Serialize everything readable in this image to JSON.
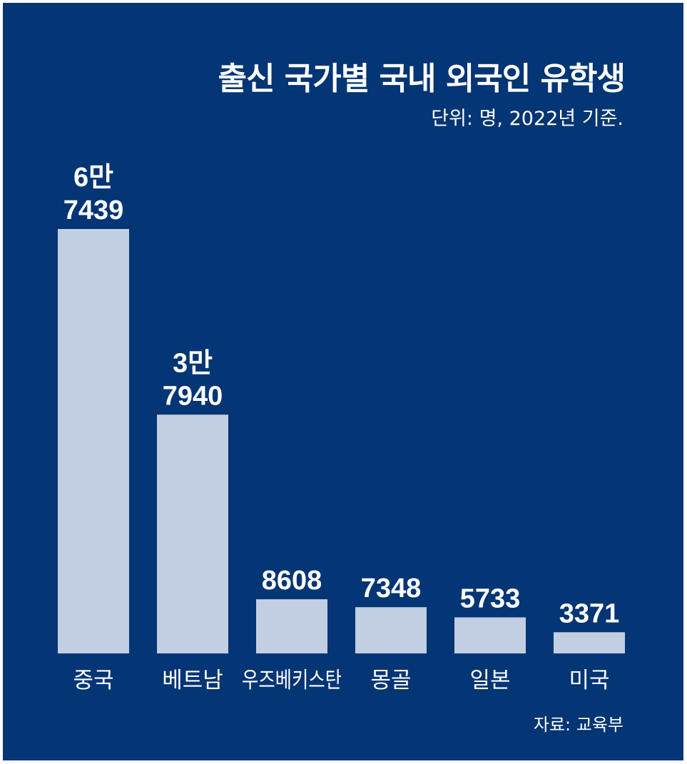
{
  "colors": {
    "background": "#043574",
    "bar": "#c2cee1",
    "text": "#ffffff"
  },
  "chart_data": {
    "type": "bar",
    "title": "출신 국가별 국내 외국인 유학생",
    "subtitle": "단위: 명, 2022년 기준.",
    "source": "자료: 교육부",
    "categories": [
      "중국",
      "베트남",
      "우즈베키스탄",
      "몽골",
      "일본",
      "미국"
    ],
    "values": [
      67439,
      37940,
      8608,
      7348,
      5733,
      3371
    ],
    "value_labels": [
      [
        "6만",
        "7439"
      ],
      [
        "3만",
        "7940"
      ],
      [
        "8608"
      ],
      [
        "7348"
      ],
      [
        "5733"
      ],
      [
        "3371"
      ]
    ],
    "xlabel": "",
    "ylabel": "",
    "grid": false,
    "legend": "none"
  }
}
